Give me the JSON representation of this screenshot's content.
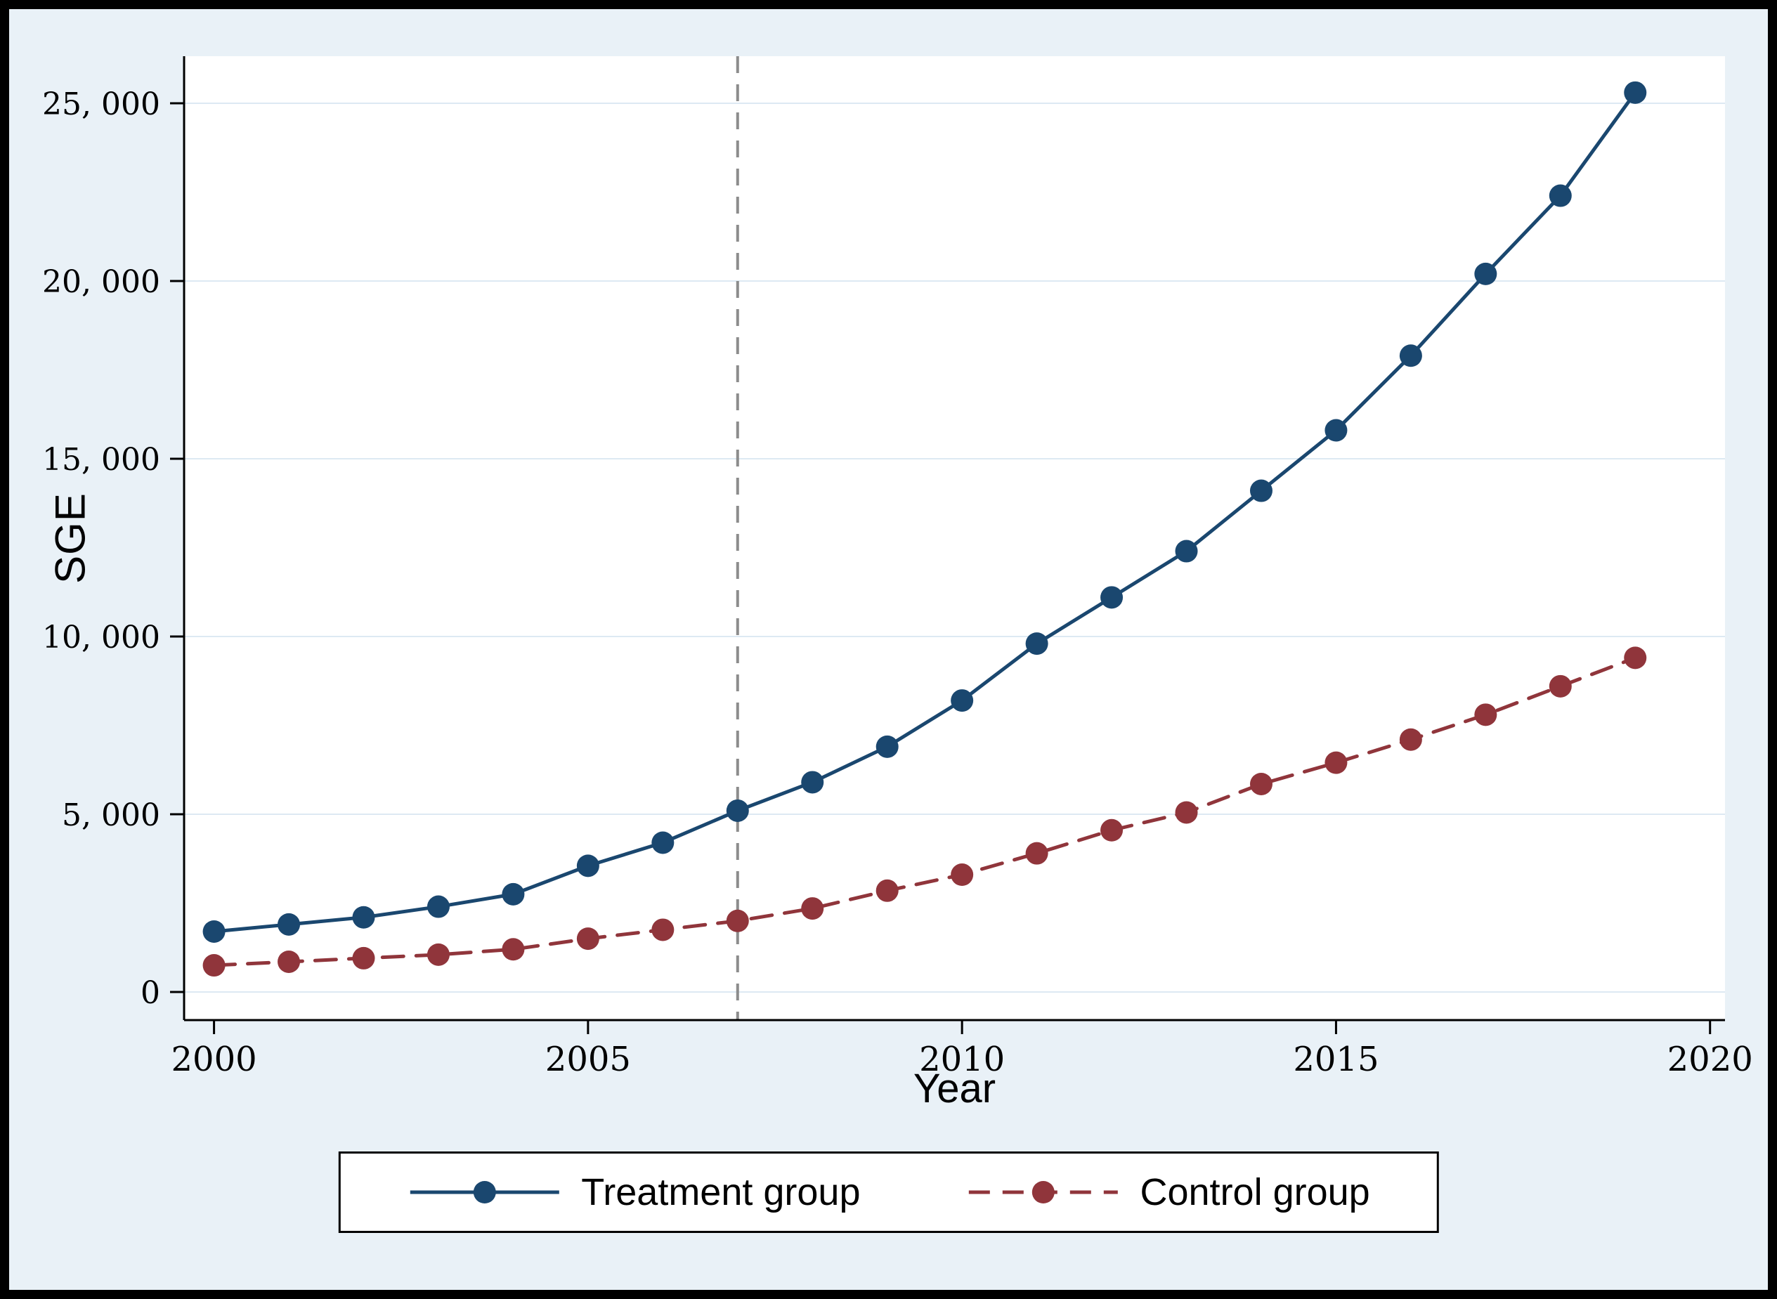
{
  "chart_data": {
    "type": "line",
    "title": "",
    "xlabel": "Year",
    "ylabel": "SGE",
    "x": [
      2000,
      2001,
      2002,
      2003,
      2004,
      2005,
      2006,
      2007,
      2008,
      2009,
      2010,
      2011,
      2012,
      2013,
      2014,
      2015,
      2016,
      2017,
      2018,
      2019
    ],
    "series": [
      {
        "name": "Treatment group",
        "style": "solid",
        "color": "#1a476f",
        "values": [
          1700,
          1900,
          2100,
          2400,
          2750,
          3550,
          4200,
          5100,
          5900,
          6900,
          8200,
          9800,
          11100,
          12400,
          14100,
          15800,
          17900,
          20200,
          22400,
          25300
        ]
      },
      {
        "name": "Control group",
        "style": "dashed",
        "color": "#90353b",
        "values": [
          750,
          850,
          950,
          1050,
          1200,
          1500,
          1750,
          2000,
          2350,
          2850,
          3300,
          3900,
          4550,
          5050,
          5850,
          6450,
          7100,
          7800,
          8600,
          9400
        ]
      }
    ],
    "vline": {
      "x": 2007,
      "style": "dashed",
      "color": "#8c8c8c"
    },
    "xlim": [
      1999.6,
      2020.2
    ],
    "ylim": [
      0,
      25800
    ],
    "xticks": {
      "values": [
        2000,
        2005,
        2010,
        2015,
        2020
      ],
      "labels": [
        "2000",
        "2005",
        "2010",
        "2015",
        "2020"
      ]
    },
    "yticks": {
      "values": [
        0,
        5000,
        10000,
        15000,
        20000,
        25000
      ],
      "labels": [
        "0",
        "5, 000",
        "10, 000",
        "15, 000",
        "20, 000",
        "25, 000"
      ]
    },
    "grid": true,
    "legend_position": "bottom"
  },
  "colors": {
    "background": "#e9f1f7",
    "plot_background": "#ffffff",
    "grid": "#dde9f3",
    "axis": "#000000",
    "frame": "#000000",
    "vline": "#8c8c8c"
  }
}
